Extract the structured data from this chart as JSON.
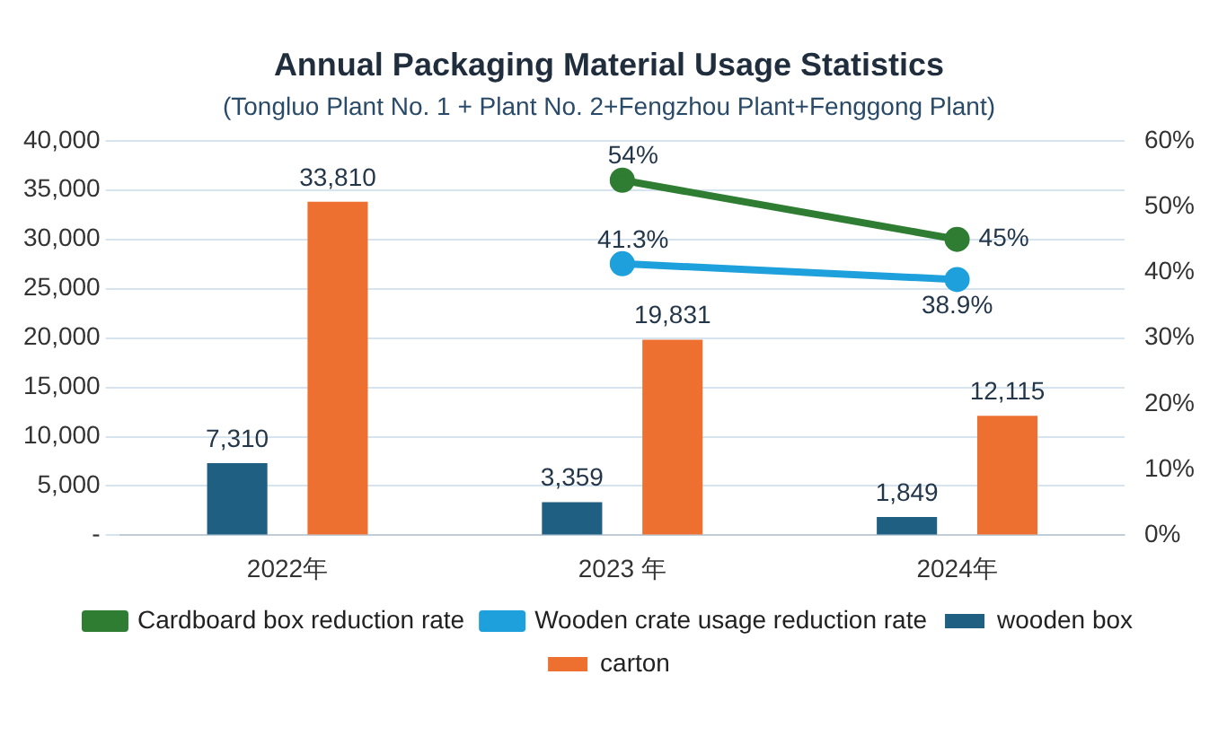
{
  "chart_data": {
    "type": "bar",
    "title": "Annual Packaging Material Usage Statistics",
    "subtitle": "(Tongluo Plant No. 1 + Plant No. 2+Fengzhou Plant+Fenggong Plant)",
    "categories": [
      "2022年",
      "2023 年",
      "2024年"
    ],
    "series": [
      {
        "name": "wooden box",
        "color": "#1f5f82",
        "values": [
          7310,
          3359,
          1849
        ],
        "value_labels": [
          "7,310",
          "3,359",
          "1,849"
        ]
      },
      {
        "name": "carton",
        "color": "#ee7030",
        "values": [
          33810,
          19831,
          12115
        ],
        "value_labels": [
          "33,810",
          "19,831",
          "12,115"
        ]
      },
      {
        "name": "Cardboard box reduction rate",
        "type": "line",
        "axis": "y2",
        "color": "#2e7d32",
        "values": [
          null,
          54,
          45
        ],
        "value_labels": [
          null,
          "54%",
          "45%"
        ]
      },
      {
        "name": "Wooden crate usage reduction rate",
        "type": "line",
        "axis": "y2",
        "color": "#1ea0dc",
        "values": [
          null,
          41.3,
          38.9
        ],
        "value_labels": [
          null,
          "41.3%",
          "38.9%"
        ]
      }
    ],
    "ylim": [
      0,
      40000
    ],
    "yticks": [
      {
        "value": 0,
        "label": "-"
      },
      {
        "value": 5000,
        "label": "5,000"
      },
      {
        "value": 10000,
        "label": "10,000"
      },
      {
        "value": 15000,
        "label": "15,000"
      },
      {
        "value": 20000,
        "label": "20,000"
      },
      {
        "value": 25000,
        "label": "25,000"
      },
      {
        "value": 30000,
        "label": "30,000"
      },
      {
        "value": 35000,
        "label": "35,000"
      },
      {
        "value": 40000,
        "label": "40,000"
      }
    ],
    "y2lim": [
      0,
      60
    ],
    "y2ticks": [
      {
        "value": 0,
        "label": "0%"
      },
      {
        "value": 10,
        "label": "10%"
      },
      {
        "value": 20,
        "label": "20%"
      },
      {
        "value": 30,
        "label": "30%"
      },
      {
        "value": 40,
        "label": "40%"
      },
      {
        "value": 50,
        "label": "50%"
      },
      {
        "value": 60,
        "label": "60%"
      }
    ],
    "grid": "y",
    "legend": "bottom",
    "marker": "circle"
  }
}
